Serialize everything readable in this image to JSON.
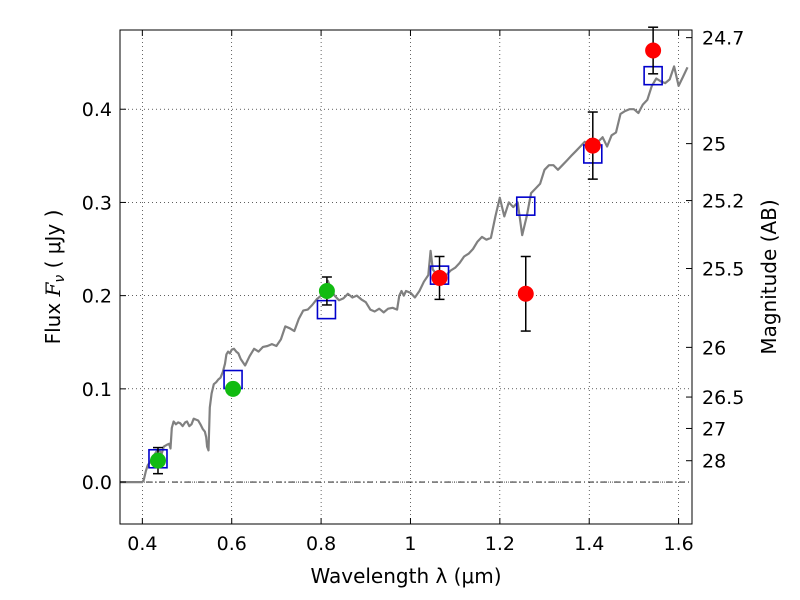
{
  "chart_data": {
    "type": "scatter",
    "xlabel": "Wavelength  λ (μm)",
    "ylabel": "Flux  Fν  ( μJy )",
    "ylabel_parts": {
      "text": "Flux  ",
      "symbol": "F",
      "subscript": "ν",
      "unit": "  ( μJy )"
    },
    "y2label": "Magnitude (AB)",
    "xlim": [
      0.35,
      1.63
    ],
    "ylim": [
      -0.045,
      0.485
    ],
    "x_ticks": [
      0.4,
      0.6,
      0.8,
      1.0,
      1.2,
      1.4,
      1.6
    ],
    "x_tick_labels": [
      "0.4",
      "0.6",
      "0.8",
      "1",
      "1.2",
      "1.4",
      "1.6"
    ],
    "y_ticks": [
      0.0,
      0.1,
      0.2,
      0.3,
      0.4
    ],
    "y_tick_labels": [
      "0.0",
      "0.1",
      "0.2",
      "0.3",
      "0.4"
    ],
    "y2_ticks": [
      {
        "label": "24.7",
        "flux": 0.4768
      },
      {
        "label": "25",
        "flux": 0.3631
      },
      {
        "label": "25.2",
        "flux": 0.302
      },
      {
        "label": "25.5",
        "flux": 0.2291
      },
      {
        "label": "26",
        "flux": 0.1445
      },
      {
        "label": "26.5",
        "flux": 0.0912
      },
      {
        "label": "27",
        "flux": 0.0575
      },
      {
        "label": "28",
        "flux": 0.0229
      }
    ],
    "grid": true,
    "zero_line": true,
    "colors": {
      "model_spectrum": "#808080",
      "model_photometry": "#0000cc",
      "optical_points": "#11bb11",
      "nir_points": "#ff0000",
      "errorbars": "#000000"
    },
    "series": [
      {
        "kind": "spectrum",
        "points": [
          [
            0.35,
            0.0
          ],
          [
            0.4,
            0.0
          ],
          [
            0.403,
            0.002
          ],
          [
            0.408,
            0.012
          ],
          [
            0.412,
            0.018
          ],
          [
            0.418,
            0.022
          ],
          [
            0.425,
            0.028
          ],
          [
            0.432,
            0.033
          ],
          [
            0.438,
            0.034
          ],
          [
            0.443,
            0.03
          ],
          [
            0.448,
            0.038
          ],
          [
            0.455,
            0.04
          ],
          [
            0.46,
            0.041
          ],
          [
            0.463,
            0.036
          ],
          [
            0.466,
            0.058
          ],
          [
            0.47,
            0.065
          ],
          [
            0.475,
            0.062
          ],
          [
            0.48,
            0.064
          ],
          [
            0.485,
            0.063
          ],
          [
            0.49,
            0.06
          ],
          [
            0.496,
            0.064
          ],
          [
            0.5,
            0.065
          ],
          [
            0.505,
            0.06
          ],
          [
            0.51,
            0.062
          ],
          [
            0.515,
            0.068
          ],
          [
            0.52,
            0.067
          ],
          [
            0.525,
            0.066
          ],
          [
            0.53,
            0.062
          ],
          [
            0.535,
            0.057
          ],
          [
            0.54,
            0.054
          ],
          [
            0.543,
            0.048
          ],
          [
            0.545,
            0.038
          ],
          [
            0.548,
            0.034
          ],
          [
            0.551,
            0.08
          ],
          [
            0.555,
            0.095
          ],
          [
            0.56,
            0.105
          ],
          [
            0.565,
            0.107
          ],
          [
            0.57,
            0.11
          ],
          [
            0.575,
            0.112
          ],
          [
            0.58,
            0.118
          ],
          [
            0.585,
            0.127
          ],
          [
            0.588,
            0.137
          ],
          [
            0.592,
            0.14
          ],
          [
            0.596,
            0.138
          ],
          [
            0.6,
            0.142
          ],
          [
            0.605,
            0.143
          ],
          [
            0.61,
            0.14
          ],
          [
            0.615,
            0.138
          ],
          [
            0.62,
            0.132
          ],
          [
            0.63,
            0.125
          ],
          [
            0.64,
            0.135
          ],
          [
            0.65,
            0.143
          ],
          [
            0.66,
            0.14
          ],
          [
            0.67,
            0.145
          ],
          [
            0.68,
            0.146
          ],
          [
            0.69,
            0.148
          ],
          [
            0.7,
            0.146
          ],
          [
            0.71,
            0.153
          ],
          [
            0.72,
            0.167
          ],
          [
            0.73,
            0.165
          ],
          [
            0.74,
            0.162
          ],
          [
            0.75,
            0.175
          ],
          [
            0.76,
            0.184
          ],
          [
            0.77,
            0.185
          ],
          [
            0.78,
            0.19
          ],
          [
            0.79,
            0.196
          ],
          [
            0.8,
            0.2
          ],
          [
            0.81,
            0.208
          ],
          [
            0.815,
            0.216
          ],
          [
            0.82,
            0.21
          ],
          [
            0.83,
            0.2
          ],
          [
            0.84,
            0.195
          ],
          [
            0.85,
            0.197
          ],
          [
            0.86,
            0.202
          ],
          [
            0.87,
            0.198
          ],
          [
            0.88,
            0.2
          ],
          [
            0.89,
            0.196
          ],
          [
            0.9,
            0.193
          ],
          [
            0.91,
            0.185
          ],
          [
            0.92,
            0.183
          ],
          [
            0.93,
            0.186
          ],
          [
            0.94,
            0.182
          ],
          [
            0.95,
            0.186
          ],
          [
            0.96,
            0.187
          ],
          [
            0.97,
            0.185
          ],
          [
            0.975,
            0.2
          ],
          [
            0.98,
            0.205
          ],
          [
            0.985,
            0.2
          ],
          [
            0.99,
            0.205
          ],
          [
            1.0,
            0.203
          ],
          [
            1.01,
            0.198
          ],
          [
            1.02,
            0.205
          ],
          [
            1.03,
            0.215
          ],
          [
            1.04,
            0.222
          ],
          [
            1.045,
            0.248
          ],
          [
            1.05,
            0.228
          ],
          [
            1.06,
            0.222
          ],
          [
            1.07,
            0.224
          ],
          [
            1.08,
            0.222
          ],
          [
            1.09,
            0.227
          ],
          [
            1.1,
            0.23
          ],
          [
            1.11,
            0.235
          ],
          [
            1.12,
            0.242
          ],
          [
            1.13,
            0.245
          ],
          [
            1.14,
            0.25
          ],
          [
            1.15,
            0.258
          ],
          [
            1.16,
            0.263
          ],
          [
            1.17,
            0.26
          ],
          [
            1.18,
            0.262
          ],
          [
            1.19,
            0.285
          ],
          [
            1.2,
            0.305
          ],
          [
            1.21,
            0.285
          ],
          [
            1.22,
            0.3
          ],
          [
            1.23,
            0.295
          ],
          [
            1.24,
            0.3
          ],
          [
            1.25,
            0.265
          ],
          [
            1.26,
            0.285
          ],
          [
            1.27,
            0.31
          ],
          [
            1.28,
            0.315
          ],
          [
            1.29,
            0.32
          ],
          [
            1.3,
            0.335
          ],
          [
            1.31,
            0.34
          ],
          [
            1.32,
            0.34
          ],
          [
            1.33,
            0.335
          ],
          [
            1.34,
            0.34
          ],
          [
            1.35,
            0.345
          ],
          [
            1.36,
            0.35
          ],
          [
            1.37,
            0.355
          ],
          [
            1.38,
            0.36
          ],
          [
            1.39,
            0.365
          ],
          [
            1.4,
            0.362
          ],
          [
            1.41,
            0.36
          ],
          [
            1.42,
            0.365
          ],
          [
            1.43,
            0.37
          ],
          [
            1.44,
            0.36
          ],
          [
            1.45,
            0.372
          ],
          [
            1.46,
            0.375
          ],
          [
            1.47,
            0.395
          ],
          [
            1.48,
            0.398
          ],
          [
            1.49,
            0.4
          ],
          [
            1.5,
            0.4
          ],
          [
            1.51,
            0.396
          ],
          [
            1.52,
            0.405
          ],
          [
            1.53,
            0.41
          ],
          [
            1.54,
            0.425
          ],
          [
            1.55,
            0.433
          ],
          [
            1.56,
            0.43
          ],
          [
            1.57,
            0.428
          ],
          [
            1.58,
            0.432
          ],
          [
            1.59,
            0.446
          ],
          [
            1.6,
            0.425
          ],
          [
            1.61,
            0.435
          ],
          [
            1.62,
            0.445
          ]
        ]
      },
      {
        "kind": "model-photometry",
        "points": [
          [
            0.435,
            0.025
          ],
          [
            0.603,
            0.11
          ],
          [
            0.812,
            0.185
          ],
          [
            1.065,
            0.222
          ],
          [
            1.258,
            0.296
          ],
          [
            1.408,
            0.352
          ],
          [
            1.543,
            0.436
          ]
        ]
      },
      {
        "kind": "observed-optical",
        "points": [
          [
            0.435,
            0.023,
            0.014
          ],
          [
            0.603,
            0.1,
            0.006
          ],
          [
            0.813,
            0.205,
            0.015
          ]
        ]
      },
      {
        "kind": "observed-nir",
        "points": [
          [
            1.065,
            0.219,
            0.023
          ],
          [
            1.258,
            0.202,
            0.04
          ],
          [
            1.408,
            0.361,
            0.036
          ],
          [
            1.543,
            0.463,
            0.025
          ]
        ]
      }
    ]
  }
}
